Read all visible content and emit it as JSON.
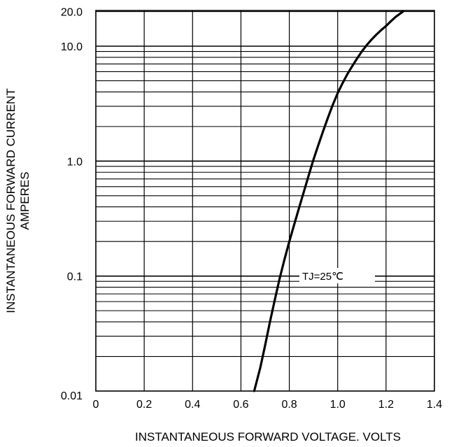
{
  "chart_data": {
    "type": "line",
    "xlabel": "INSTANTANEOUS FORWARD VOLTAGE. VOLTS",
    "ylabel_lines": [
      "INSTANTANEOUS FORWARD CURRENT",
      "AMPERES"
    ],
    "xlim": [
      0,
      1.4
    ],
    "ylim": [
      0.01,
      20.0
    ],
    "yscale": "log",
    "grid": true,
    "x_ticks": [
      0,
      0.2,
      0.4,
      0.6,
      0.8,
      1.0,
      1.2,
      1.4
    ],
    "x_tick_labels": [
      "0",
      "0.2",
      "0.4",
      "0.6",
      "0.8",
      "1.0",
      "1.2",
      "1.4"
    ],
    "y_ticks": [
      0.01,
      0.1,
      1.0,
      10.0,
      20.0
    ],
    "y_tick_labels": [
      "0.01",
      "0.1",
      "1.0",
      "10.0",
      "20.0"
    ],
    "annotation": "TJ=25℃",
    "line_color": "#000000",
    "series": [
      {
        "x": [
          0.655,
          0.68,
          0.7,
          0.72,
          0.74,
          0.76,
          0.78,
          0.8,
          0.82,
          0.84,
          0.86,
          0.88,
          0.9,
          0.92,
          0.94,
          0.96,
          0.98,
          1.0,
          1.02,
          1.04,
          1.06,
          1.08,
          1.1,
          1.12,
          1.14,
          1.16,
          1.18,
          1.2,
          1.22,
          1.24,
          1.27
        ],
        "y": [
          0.01,
          0.016,
          0.025,
          0.04,
          0.062,
          0.095,
          0.14,
          0.2,
          0.28,
          0.39,
          0.54,
          0.75,
          1.03,
          1.38,
          1.83,
          2.4,
          3.1,
          3.9,
          4.75,
          5.7,
          6.7,
          7.8,
          9.0,
          10.2,
          11.4,
          12.6,
          13.8,
          15.0,
          16.5,
          18.0,
          20.0
        ]
      }
    ]
  }
}
